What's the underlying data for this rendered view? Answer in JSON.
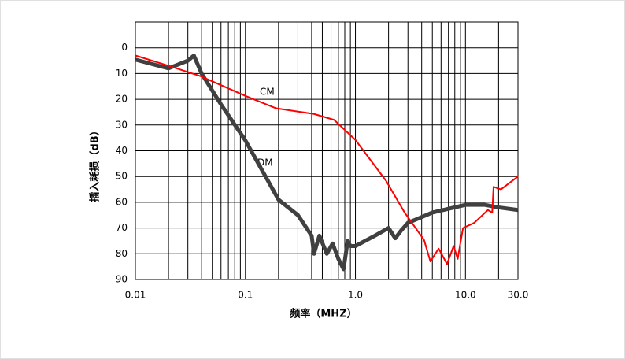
{
  "chart_data": {
    "type": "line",
    "x_label": "频率（MHZ）",
    "y_label": "插入耗损（dB）",
    "x_log": true,
    "y_inverted": true,
    "grid": true,
    "minor_grid": true,
    "xlim": [
      0.01,
      30
    ],
    "xticks": [
      0.01,
      0.1,
      {
        "value": 1,
        "label": "1.0"
      },
      {
        "value": 10,
        "label": "10.0"
      },
      {
        "value": 30,
        "label": "30.0"
      }
    ],
    "ylim": [
      -10,
      90
    ],
    "yticks": [
      0,
      10,
      20,
      30,
      40,
      50,
      60,
      70,
      80,
      90
    ],
    "x": [
      0.01,
      0.02,
      0.03,
      0.034,
      0.04,
      0.06,
      0.1,
      0.2,
      0.3,
      0.4,
      0.42,
      0.47,
      0.55,
      0.62,
      0.7,
      0.78,
      0.85,
      0.9,
      1.0,
      1.5,
      2.0,
      2.3,
      2.6,
      3.0,
      5.0,
      10.0,
      15.0,
      20.0,
      30.0
    ],
    "series": [
      {
        "name": "DM",
        "color": "#404040",
        "values": [
          4.6,
          8,
          5,
          3,
          10,
          22,
          36,
          59,
          65,
          73,
          80,
          73,
          80,
          76,
          82,
          86,
          75,
          77,
          77,
          73,
          70,
          74,
          71,
          68,
          64,
          61,
          61,
          62,
          63
        ]
      },
      {
        "name": "CM",
        "color": "#ff0000",
        "x": [
          0.01,
          0.02,
          0.039,
          0.1,
          0.19,
          0.42,
          0.64,
          1.0,
          1.9,
          2.8,
          4.2,
          4.8,
          5.7,
          6.8,
          7.8,
          8.5,
          9.5,
          12.0,
          16.0,
          17.5,
          18.0,
          21.0,
          30.0
        ],
        "values": [
          3,
          7,
          11,
          18.7,
          23.5,
          25.7,
          28,
          35.8,
          51.7,
          64,
          74.6,
          83,
          78,
          84,
          77,
          82,
          70,
          68,
          63,
          64,
          54,
          55,
          50
        ]
      }
    ],
    "annotations": [
      "CM",
      "DM"
    ]
  }
}
